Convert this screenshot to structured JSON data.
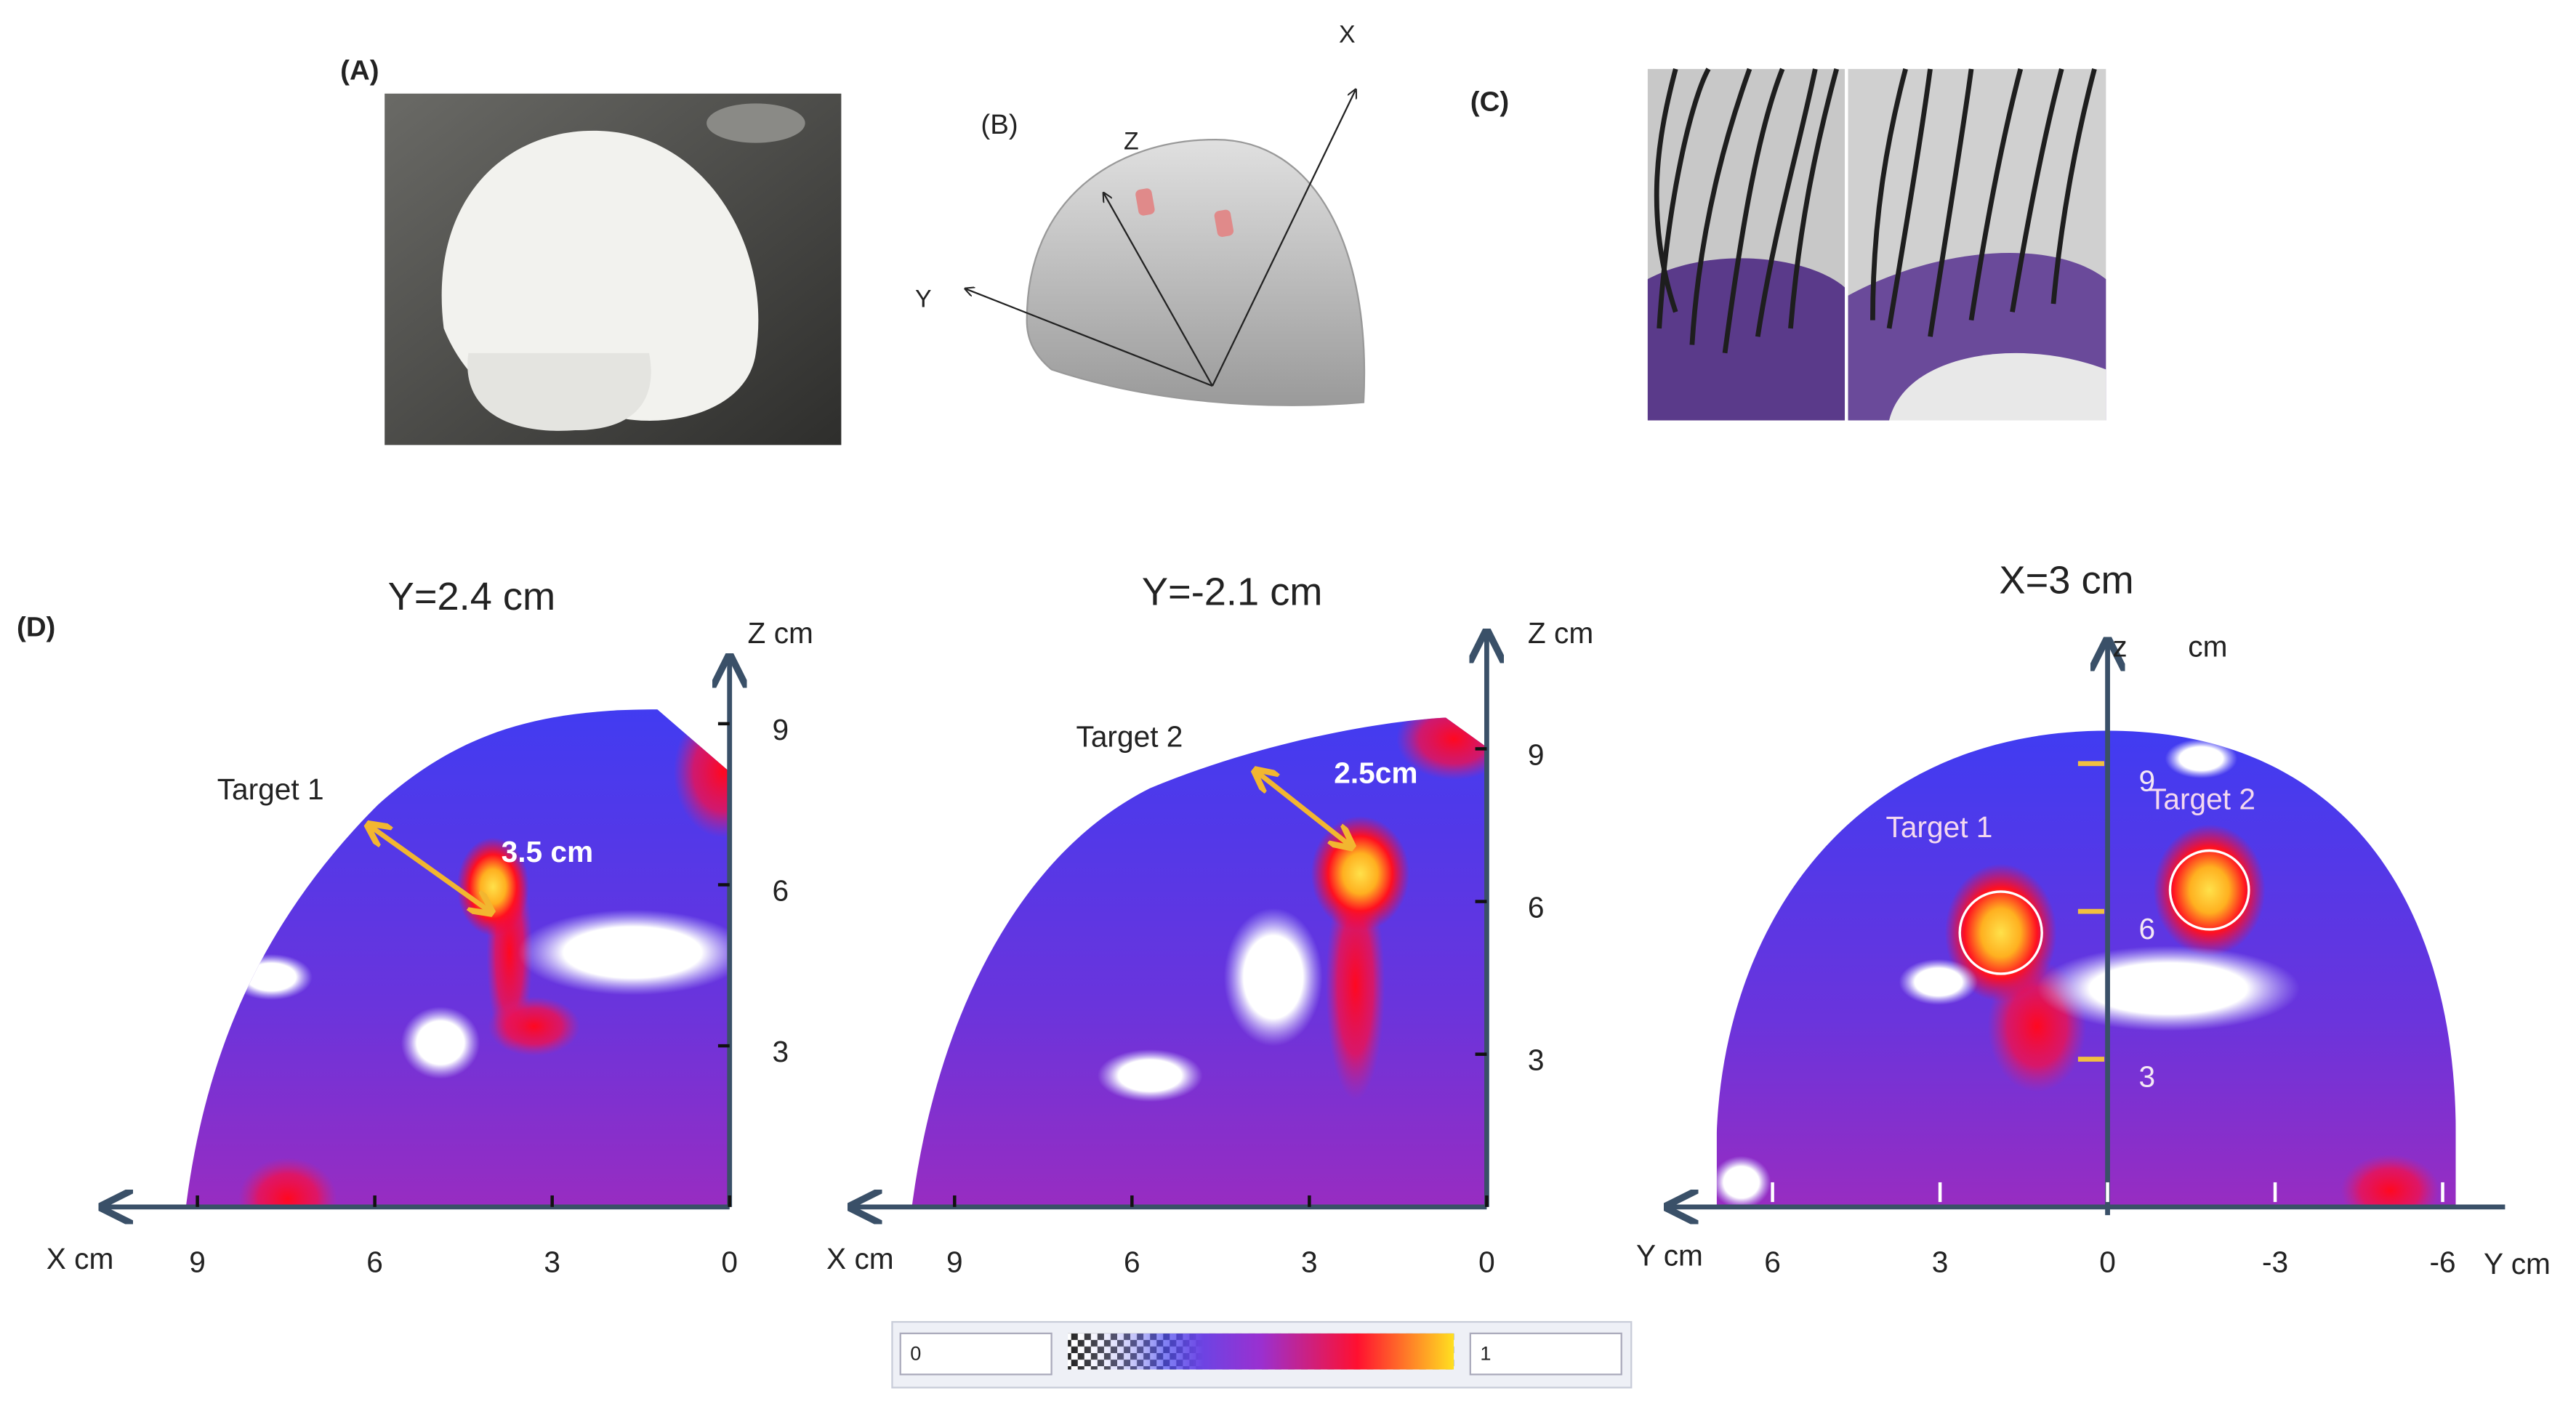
{
  "panel_a": {
    "label": "(A)"
  },
  "panel_b": {
    "label": "(B)",
    "axis_x": "X",
    "axis_y": "Y",
    "axis_z": "Z"
  },
  "panel_c": {
    "label": "(C)"
  },
  "panel_d": {
    "label": "(D)",
    "plots": [
      {
        "title": "Y=2.4 cm",
        "vertical_label": "Z cm",
        "horizontal_label": "X cm",
        "xticks": [
          9,
          6,
          3,
          0
        ],
        "zticks": [
          9,
          6,
          3
        ],
        "target_label": "Target 1",
        "distance_label": "3.5 cm"
      },
      {
        "title": "Y=-2.1 cm",
        "vertical_label": "Z cm",
        "horizontal_label": "X cm",
        "xticks": [
          9,
          6,
          3,
          0
        ],
        "zticks": [
          9,
          6,
          3
        ],
        "target_label": "Target 2",
        "distance_label": "2.5cm"
      },
      {
        "title": "X=3 cm",
        "vertical_label": "z",
        "vertical_unit": "cm",
        "horizontal_label": "Y cm",
        "horizontal_label_right": "Y cm",
        "xticks": [
          6,
          3,
          0,
          -3,
          -6
        ],
        "zticks": [
          9,
          6,
          3
        ],
        "target_label": "Target 1",
        "target_label_2": "Target 2"
      }
    ],
    "colorbar": {
      "min": 0,
      "max": 1
    }
  }
}
